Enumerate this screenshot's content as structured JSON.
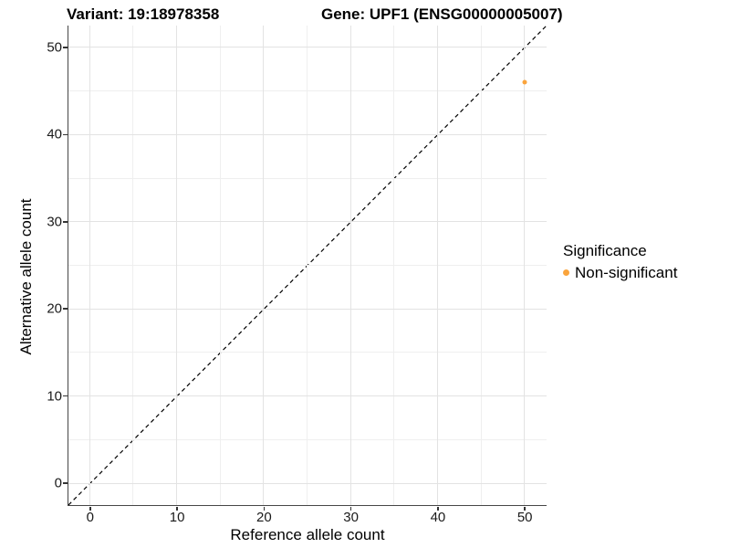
{
  "title": {
    "variant": "Variant: 19:18978358",
    "gene": "Gene: UPF1 (ENSG00000005007)"
  },
  "axes": {
    "x": {
      "label": "Reference allele count",
      "min": -2.5,
      "max": 52.5,
      "major_ticks": [
        0,
        10,
        20,
        30,
        40,
        50
      ],
      "minor_ticks": [
        5,
        15,
        25,
        35,
        45
      ]
    },
    "y": {
      "label": "Alternative allele count",
      "min": -2.5,
      "max": 52.5,
      "major_ticks": [
        0,
        10,
        20,
        30,
        40,
        50
      ],
      "minor_ticks": [
        5,
        15,
        25,
        35,
        45
      ]
    }
  },
  "legend": {
    "title": "Significance",
    "items": [
      {
        "label": "Non-significant",
        "color": "#FAA43C"
      }
    ]
  },
  "colors": {
    "point": "#FAA43C",
    "grid_major": "#e3e3e3",
    "grid_minor": "#efefef",
    "axis_line": "#464646",
    "identity_line": "#000000"
  },
  "chart_data": {
    "type": "scatter",
    "title": "Variant: 19:18978358    Gene: UPF1 (ENSG00000005007)",
    "xlabel": "Reference allele count",
    "ylabel": "Alternative allele count",
    "xlim": [
      -2.5,
      52.5
    ],
    "ylim": [
      -2.5,
      52.5
    ],
    "x_ticks": [
      0,
      10,
      20,
      30,
      40,
      50
    ],
    "y_ticks": [
      0,
      10,
      20,
      30,
      40,
      50
    ],
    "grid": true,
    "legend_title": "Significance",
    "legend_position": "right",
    "series": [
      {
        "name": "Non-significant",
        "color": "#FAA43C",
        "marker": "circle",
        "points": [
          {
            "x": 50,
            "y": 46
          }
        ]
      }
    ],
    "reference_line": {
      "equation": "y = x",
      "style": "dashed",
      "color": "#000000"
    }
  }
}
